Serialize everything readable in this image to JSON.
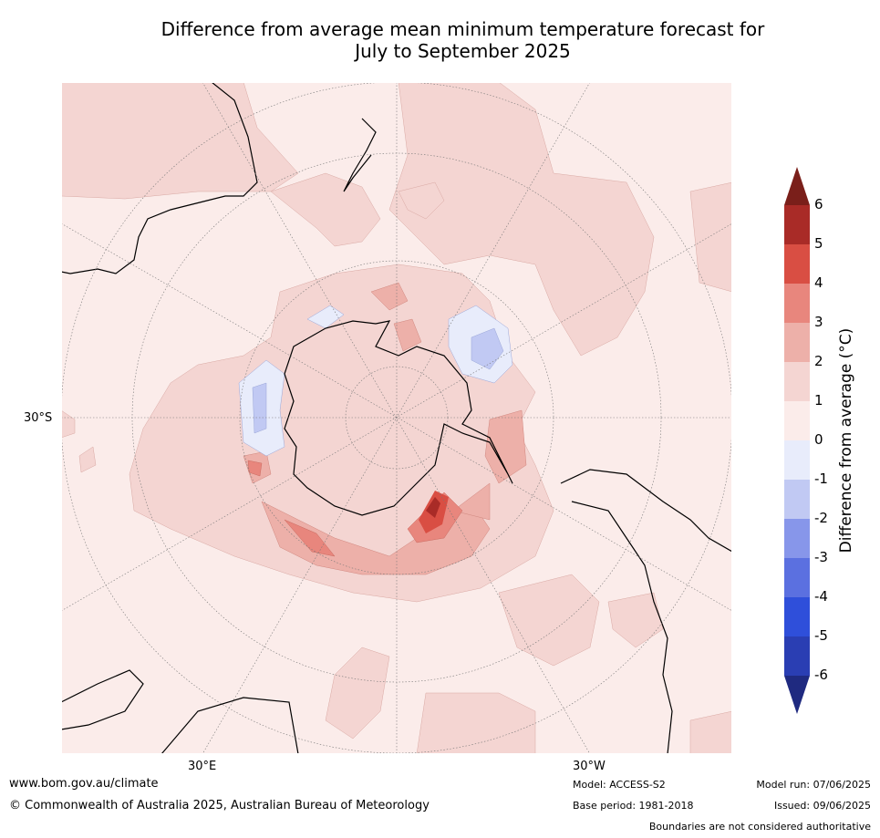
{
  "title": {
    "line1": "Difference from average mean minimum temperature forecast for",
    "line2": "July to September 2025"
  },
  "map": {
    "projection": "south polar stereographic",
    "lat_labels": [
      "30°S"
    ],
    "lon_labels": [
      "30°E",
      "30°W"
    ]
  },
  "colorbar": {
    "label": "Difference from average (°C)",
    "label_text": "Difference from average ($^\\circ$C)",
    "ticks": [
      "6",
      "5",
      "4",
      "3",
      "2",
      "1",
      "0",
      "-1",
      "-2",
      "-3",
      "-4",
      "-5",
      "-6"
    ],
    "bins": [
      {
        "range": ">6",
        "color": "#7a1f1a"
      },
      {
        "range": "5 to 6",
        "color": "#a92b27"
      },
      {
        "range": "4 to 5",
        "color": "#d94e43"
      },
      {
        "range": "3 to 4",
        "color": "#e8867d"
      },
      {
        "range": "2 to 3",
        "color": "#edb0a9"
      },
      {
        "range": "1 to 2",
        "color": "#f4d5d2"
      },
      {
        "range": "0 to 1",
        "color": "#fbecea"
      },
      {
        "range": "-1 to 0",
        "color": "#e8ecfb"
      },
      {
        "range": "-2 to -1",
        "color": "#c1c9f3"
      },
      {
        "range": "-3 to -2",
        "color": "#8796ea"
      },
      {
        "range": "-4 to -3",
        "color": "#5b70e0"
      },
      {
        "range": "-5 to -4",
        "color": "#2f4fda"
      },
      {
        "range": "-6 to -5",
        "color": "#2a3eb3"
      },
      {
        "range": "<-6",
        "color": "#1f2a80"
      }
    ]
  },
  "footer": {
    "website": "www.bom.gov.au/climate",
    "copyright": "© Commonwealth of Australia 2025, Australian Bureau of Meteorology",
    "model": "Model: ACCESS-S2",
    "base_period": "Base period: 1981-2018",
    "model_run": "Model run: 07/06/2025",
    "issued": "Issued: 09/06/2025",
    "disclaimer": "Boundaries are not considered authoritative"
  }
}
